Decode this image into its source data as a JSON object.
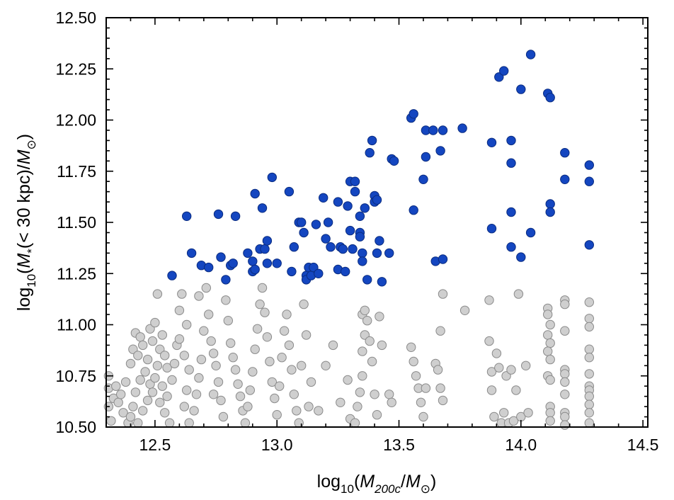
{
  "chart_data": {
    "type": "scatter",
    "title": "",
    "xlabel": {
      "prefix": "log",
      "base": "10",
      "open": "(",
      "sym": "M",
      "sym_sub": "200c",
      "slash": "/",
      "sym2": "M",
      "sun": "⊙",
      "close": ")"
    },
    "ylabel": {
      "prefix": "log",
      "base": "10",
      "open": "(",
      "sym": "M",
      "sym_sub": "*",
      "middle": "(< 30 kpc)",
      "slash": "/",
      "sym2": "M",
      "sun": "⊙",
      "close": ")"
    },
    "xlim": [
      12.3,
      14.52
    ],
    "ylim": [
      10.5,
      12.5
    ],
    "xticks": [
      12.5,
      13.0,
      13.5,
      14.0,
      14.5
    ],
    "xtick_labels": [
      "12.5",
      "13.0",
      "13.5",
      "14.0",
      "14.5"
    ],
    "yticks": [
      10.5,
      10.75,
      11.0,
      11.25,
      11.5,
      11.75,
      12.0,
      12.25,
      12.5
    ],
    "ytick_labels": [
      "10.50",
      "10.75",
      "11.00",
      "11.25",
      "11.50",
      "11.75",
      "12.00",
      "12.25",
      "12.50"
    ],
    "grid": false,
    "legend": "none",
    "colors": {
      "blue_fill": "#1446c0",
      "blue_edge": "#0a2c80",
      "gray_fill": "#cfcfcf",
      "gray_edge": "#8a8a8a",
      "axis": "#000000"
    },
    "series": [
      {
        "style": "gray",
        "points": [
          [
            12.31,
            10.75
          ],
          [
            12.31,
            10.69
          ],
          [
            12.31,
            10.6
          ],
          [
            12.33,
            10.64
          ],
          [
            12.35,
            10.62
          ],
          [
            12.37,
            10.57
          ],
          [
            12.39,
            10.52
          ],
          [
            12.32,
            10.53
          ],
          [
            12.34,
            10.7
          ],
          [
            12.36,
            10.66
          ],
          [
            12.38,
            10.72
          ],
          [
            12.4,
            10.81
          ],
          [
            12.41,
            10.88
          ],
          [
            12.42,
            10.96
          ],
          [
            12.44,
            10.94
          ],
          [
            12.43,
            10.85
          ],
          [
            12.45,
            10.9
          ],
          [
            12.47,
            10.83
          ],
          [
            12.46,
            10.77
          ],
          [
            12.48,
            10.71
          ],
          [
            12.44,
            10.73
          ],
          [
            12.42,
            10.67
          ],
          [
            12.41,
            10.6
          ],
          [
            12.4,
            10.55
          ],
          [
            12.43,
            10.52
          ],
          [
            12.45,
            10.58
          ],
          [
            12.47,
            10.63
          ],
          [
            12.49,
            10.67
          ],
          [
            12.5,
            10.74
          ],
          [
            12.51,
            10.8
          ],
          [
            12.52,
            10.88
          ],
          [
            12.49,
            10.92
          ],
          [
            12.48,
            10.98
          ],
          [
            12.5,
            11.01
          ],
          [
            12.51,
            11.15
          ],
          [
            12.53,
            10.95
          ],
          [
            12.54,
            10.85
          ],
          [
            12.55,
            10.79
          ],
          [
            12.53,
            10.7
          ],
          [
            12.52,
            10.62
          ],
          [
            12.54,
            10.57
          ],
          [
            12.56,
            10.52
          ],
          [
            12.55,
            10.65
          ],
          [
            12.57,
            10.73
          ],
          [
            12.58,
            10.81
          ],
          [
            12.59,
            10.9
          ],
          [
            12.6,
            11.07
          ],
          [
            12.61,
            11.15
          ],
          [
            12.63,
            11.0
          ],
          [
            12.6,
            10.93
          ],
          [
            12.62,
            10.85
          ],
          [
            12.64,
            10.78
          ],
          [
            12.63,
            10.68
          ],
          [
            12.62,
            10.6
          ],
          [
            12.64,
            10.52
          ],
          [
            12.66,
            10.58
          ],
          [
            12.67,
            10.66
          ],
          [
            12.68,
            10.74
          ],
          [
            12.69,
            10.83
          ],
          [
            12.7,
            10.97
          ],
          [
            12.68,
            11.14
          ],
          [
            12.71,
            11.18
          ],
          [
            12.72,
            11.05
          ],
          [
            12.73,
            10.92
          ],
          [
            12.74,
            10.86
          ],
          [
            12.75,
            10.8
          ],
          [
            12.76,
            10.72
          ],
          [
            12.77,
            10.63
          ],
          [
            12.78,
            10.55
          ],
          [
            12.74,
            10.66
          ],
          [
            12.79,
            11.12
          ],
          [
            12.8,
            11.02
          ],
          [
            12.81,
            10.91
          ],
          [
            12.82,
            10.84
          ],
          [
            12.83,
            10.78
          ],
          [
            12.84,
            10.71
          ],
          [
            12.85,
            10.65
          ],
          [
            12.86,
            10.58
          ],
          [
            12.87,
            10.52
          ],
          [
            12.88,
            10.6
          ],
          [
            12.89,
            10.68
          ],
          [
            12.9,
            10.77
          ],
          [
            12.91,
            10.88
          ],
          [
            12.92,
            10.98
          ],
          [
            12.93,
            11.1
          ],
          [
            12.94,
            11.18
          ],
          [
            12.95,
            11.06
          ],
          [
            12.96,
            10.94
          ],
          [
            12.97,
            10.82
          ],
          [
            12.98,
            10.72
          ],
          [
            12.99,
            10.64
          ],
          [
            13.0,
            10.56
          ],
          [
            13.01,
            10.7
          ],
          [
            13.02,
            10.84
          ],
          [
            13.03,
            10.97
          ],
          [
            13.04,
            11.05
          ],
          [
            13.05,
            10.9
          ],
          [
            13.06,
            10.78
          ],
          [
            13.07,
            10.66
          ],
          [
            13.08,
            10.58
          ],
          [
            13.09,
            10.52
          ],
          [
            13.1,
            10.8
          ],
          [
            13.11,
            11.1
          ],
          [
            13.12,
            10.95
          ],
          [
            13.13,
            10.6
          ],
          [
            13.14,
            10.72
          ],
          [
            13.17,
            10.58
          ],
          [
            13.2,
            10.8
          ],
          [
            13.23,
            10.9
          ],
          [
            13.26,
            10.62
          ],
          [
            13.29,
            10.73
          ],
          [
            13.3,
            10.54
          ],
          [
            13.32,
            10.52
          ],
          [
            13.33,
            10.6
          ],
          [
            13.34,
            10.67
          ],
          [
            13.35,
            10.75
          ],
          [
            13.35,
            10.87
          ],
          [
            13.36,
            10.95
          ],
          [
            13.35,
            11.05
          ],
          [
            13.36,
            11.07
          ],
          [
            13.37,
            11.02
          ],
          [
            13.38,
            10.92
          ],
          [
            13.39,
            10.82
          ],
          [
            13.4,
            10.66
          ],
          [
            13.41,
            10.56
          ],
          [
            13.42,
            11.04
          ],
          [
            13.43,
            10.9
          ],
          [
            13.46,
            10.66
          ],
          [
            13.47,
            10.62
          ],
          [
            13.55,
            10.89
          ],
          [
            13.56,
            10.82
          ],
          [
            13.57,
            10.75
          ],
          [
            13.58,
            10.69
          ],
          [
            13.59,
            10.62
          ],
          [
            13.6,
            10.55
          ],
          [
            13.61,
            10.69
          ],
          [
            13.65,
            10.81
          ],
          [
            13.66,
            10.78
          ],
          [
            13.67,
            10.69
          ],
          [
            13.68,
            10.63
          ],
          [
            13.67,
            10.97
          ],
          [
            13.68,
            11.15
          ],
          [
            13.77,
            11.07
          ],
          [
            13.87,
            11.12
          ],
          [
            13.87,
            10.92
          ],
          [
            13.88,
            10.77
          ],
          [
            13.88,
            10.68
          ],
          [
            13.89,
            10.55
          ],
          [
            13.9,
            10.86
          ],
          [
            13.91,
            10.79
          ],
          [
            13.92,
            10.52
          ],
          [
            13.93,
            10.57
          ],
          [
            13.94,
            10.75
          ],
          [
            13.95,
            10.52
          ],
          [
            13.96,
            10.78
          ],
          [
            13.97,
            10.53
          ],
          [
            13.98,
            10.68
          ],
          [
            13.99,
            11.15
          ],
          [
            14.0,
            10.55
          ],
          [
            14.02,
            10.8
          ],
          [
            14.03,
            10.57
          ],
          [
            14.11,
            11.08
          ],
          [
            14.11,
            11.05
          ],
          [
            14.12,
            11.0
          ],
          [
            14.11,
            10.95
          ],
          [
            14.12,
            10.91
          ],
          [
            14.11,
            10.87
          ],
          [
            14.12,
            10.83
          ],
          [
            14.11,
            10.75
          ],
          [
            14.12,
            10.73
          ],
          [
            14.12,
            10.6
          ],
          [
            14.12,
            10.57
          ],
          [
            14.12,
            10.53
          ],
          [
            14.18,
            11.12
          ],
          [
            14.18,
            11.1
          ],
          [
            14.18,
            10.97
          ],
          [
            14.18,
            10.78
          ],
          [
            14.18,
            10.76
          ],
          [
            14.18,
            10.72
          ],
          [
            14.18,
            10.66
          ],
          [
            14.18,
            10.57
          ],
          [
            14.18,
            10.55
          ],
          [
            14.18,
            10.51
          ],
          [
            14.28,
            11.11
          ],
          [
            14.28,
            11.03
          ],
          [
            14.28,
            10.99
          ],
          [
            14.28,
            10.88
          ],
          [
            14.28,
            10.84
          ],
          [
            14.28,
            10.76
          ],
          [
            14.28,
            10.7
          ],
          [
            14.28,
            10.68
          ],
          [
            14.28,
            10.65
          ],
          [
            14.28,
            10.61
          ],
          [
            14.28,
            10.57
          ],
          [
            14.28,
            10.52
          ]
        ]
      },
      {
        "style": "blue",
        "points": [
          [
            12.57,
            11.24
          ],
          [
            12.63,
            11.53
          ],
          [
            12.65,
            11.35
          ],
          [
            12.69,
            11.29
          ],
          [
            12.72,
            11.28
          ],
          [
            12.76,
            11.54
          ],
          [
            12.77,
            11.33
          ],
          [
            12.79,
            11.22
          ],
          [
            12.81,
            11.29
          ],
          [
            12.82,
            11.3
          ],
          [
            12.83,
            11.53
          ],
          [
            12.88,
            11.35
          ],
          [
            12.9,
            11.31
          ],
          [
            12.9,
            11.26
          ],
          [
            12.91,
            11.27
          ],
          [
            12.91,
            11.64
          ],
          [
            12.93,
            11.37
          ],
          [
            12.94,
            11.57
          ],
          [
            12.95,
            11.37
          ],
          [
            12.96,
            11.3
          ],
          [
            12.96,
            11.41
          ],
          [
            12.98,
            11.72
          ],
          [
            13.0,
            11.3
          ],
          [
            13.05,
            11.65
          ],
          [
            13.06,
            11.26
          ],
          [
            13.07,
            11.38
          ],
          [
            13.09,
            11.5
          ],
          [
            13.1,
            11.5
          ],
          [
            13.11,
            11.45
          ],
          [
            13.12,
            11.24
          ],
          [
            13.12,
            11.22
          ],
          [
            13.13,
            11.28
          ],
          [
            13.14,
            11.24
          ],
          [
            13.15,
            11.28
          ],
          [
            13.16,
            11.49
          ],
          [
            13.17,
            11.25
          ],
          [
            13.19,
            11.62
          ],
          [
            13.2,
            11.42
          ],
          [
            13.21,
            11.5
          ],
          [
            13.22,
            11.38
          ],
          [
            13.25,
            11.27
          ],
          [
            13.25,
            11.6
          ],
          [
            13.26,
            11.38
          ],
          [
            13.27,
            11.37
          ],
          [
            13.28,
            11.26
          ],
          [
            13.29,
            11.58
          ],
          [
            13.3,
            11.46
          ],
          [
            13.3,
            11.7
          ],
          [
            13.31,
            11.37
          ],
          [
            13.32,
            11.65
          ],
          [
            13.32,
            11.7
          ],
          [
            13.34,
            11.45
          ],
          [
            13.34,
            11.53
          ],
          [
            13.34,
            11.43
          ],
          [
            13.35,
            11.35
          ],
          [
            13.35,
            11.31
          ],
          [
            13.36,
            11.57
          ],
          [
            13.37,
            11.22
          ],
          [
            13.38,
            11.84
          ],
          [
            13.39,
            11.9
          ],
          [
            13.4,
            11.63
          ],
          [
            13.4,
            11.6
          ],
          [
            13.41,
            11.61
          ],
          [
            13.41,
            11.35
          ],
          [
            13.42,
            11.41
          ],
          [
            13.43,
            11.21
          ],
          [
            13.46,
            11.35
          ],
          [
            13.47,
            11.81
          ],
          [
            13.48,
            11.8
          ],
          [
            13.55,
            12.01
          ],
          [
            13.56,
            12.03
          ],
          [
            13.56,
            11.56
          ],
          [
            13.6,
            11.71
          ],
          [
            13.61,
            11.95
          ],
          [
            13.61,
            11.82
          ],
          [
            13.64,
            11.95
          ],
          [
            13.65,
            11.31
          ],
          [
            13.67,
            11.85
          ],
          [
            13.68,
            11.95
          ],
          [
            13.68,
            11.32
          ],
          [
            13.76,
            11.96
          ],
          [
            13.88,
            11.89
          ],
          [
            13.88,
            11.47
          ],
          [
            13.91,
            12.21
          ],
          [
            13.93,
            12.24
          ],
          [
            13.96,
            11.9
          ],
          [
            13.96,
            11.79
          ],
          [
            13.96,
            11.55
          ],
          [
            13.96,
            11.38
          ],
          [
            14.0,
            12.15
          ],
          [
            14.0,
            11.33
          ],
          [
            14.04,
            12.32
          ],
          [
            14.04,
            11.45
          ],
          [
            14.11,
            12.13
          ],
          [
            14.12,
            12.11
          ],
          [
            14.12,
            11.59
          ],
          [
            14.12,
            11.55
          ],
          [
            14.18,
            11.84
          ],
          [
            14.18,
            11.71
          ],
          [
            14.28,
            11.78
          ],
          [
            14.28,
            11.7
          ],
          [
            14.28,
            11.39
          ]
        ]
      }
    ]
  }
}
